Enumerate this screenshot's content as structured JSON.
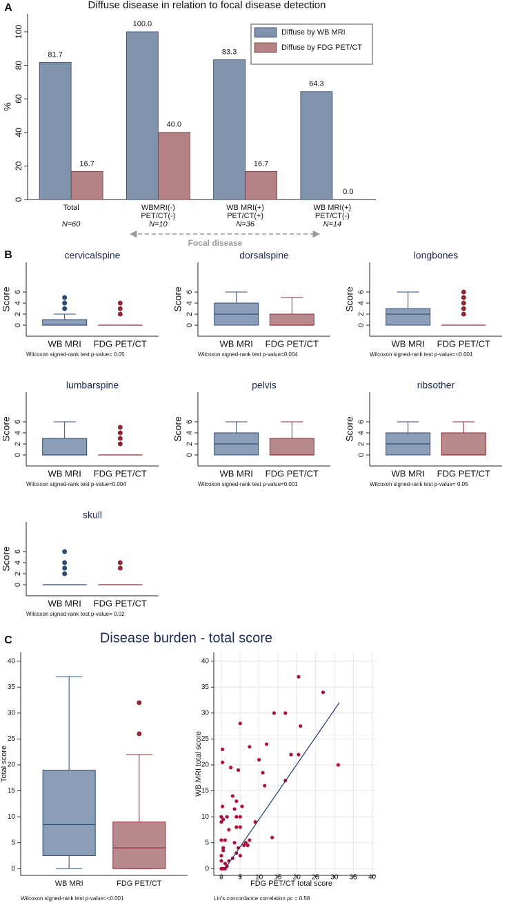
{
  "chart_data": [
    {
      "type": "bar",
      "panel": "A",
      "title": "Diffuse disease in relation to focal disease detection",
      "ylabel": "%",
      "categories": [
        [
          "Total"
        ],
        [
          "WBMRI(-)",
          "PET/CT(-)"
        ],
        [
          "WB MRI(+)",
          "PET/CT(+)"
        ],
        [
          "WB MRI(+)",
          "PET/CT(-)"
        ]
      ],
      "n_labels": [
        "N=60",
        "N=10",
        "N=36",
        "N=14"
      ],
      "series": [
        {
          "name": "Diffuse by WB MRI",
          "color": "#7f93ad",
          "edge_color": "#33465e",
          "values": [
            81.7,
            100,
            83.3,
            64.3
          ],
          "value_labels": [
            "81.7",
            "100.0",
            "83.3",
            "64.3"
          ]
        },
        {
          "name": "Diffuse by FDG PET/CT",
          "color": "#b48185",
          "edge_color": "#6e3b40",
          "values": [
            16.7,
            40,
            16.7,
            0
          ],
          "value_labels": [
            "16.7",
            "40.0",
            "16.7",
            "0.0"
          ]
        }
      ],
      "annotation": "Focal disease",
      "ylim": [
        0,
        100
      ],
      "yticks": [
        0,
        20,
        40,
        60,
        80,
        100
      ],
      "grid": false,
      "legend": "upper right"
    },
    {
      "type": "box",
      "panel": "B",
      "title": "cervicalspine",
      "ylabel": "Score",
      "note": "Wilcoxon signed-rank test p-value= 0.05",
      "ylim": [
        -2,
        7
      ],
      "yticks": [
        0,
        2,
        4,
        6
      ],
      "grid": false,
      "series": [
        {
          "name": "WB MRI",
          "color": "#8b9eb7",
          "edge_color": "#2c4a72",
          "whisker_low": 0,
          "q1": 0,
          "median": 0,
          "q3": 1,
          "whisker_high": 2,
          "outliers": [
            3,
            4,
            5
          ]
        },
        {
          "name": "FDG PET/CT",
          "color": "#b8898d",
          "edge_color": "#8b2a35",
          "whisker_low": 0,
          "q1": 0,
          "median": 0,
          "q3": 0,
          "whisker_high": 0,
          "outliers": [
            2,
            3,
            4
          ]
        }
      ]
    },
    {
      "type": "box",
      "title": "dorsalspine",
      "ylabel": "Score",
      "note": "Wilcoxon signed-rank test p-value=0.004",
      "ylim": [
        -2,
        7
      ],
      "yticks": [
        0,
        2,
        4,
        6
      ],
      "grid": false,
      "series": [
        {
          "name": "WB MRI",
          "color": "#8b9eb7",
          "edge_color": "#2c4a72",
          "whisker_low": 0,
          "q1": 0,
          "median": 2,
          "q3": 4,
          "whisker_high": 6,
          "outliers": []
        },
        {
          "name": "FDG PET/CT",
          "color": "#b8898d",
          "edge_color": "#8b2a35",
          "whisker_low": 0,
          "q1": 0,
          "median": 0,
          "q3": 2,
          "whisker_high": 5,
          "outliers": []
        }
      ]
    },
    {
      "type": "box",
      "title": "longbones",
      "ylabel": "Score",
      "note": "Wilcoxon signed-rank test p-value=<0.001",
      "ylim": [
        -2,
        7
      ],
      "yticks": [
        0,
        2,
        4,
        6
      ],
      "grid": false,
      "series": [
        {
          "name": "WB MRI",
          "color": "#8b9eb7",
          "edge_color": "#2c4a72",
          "whisker_low": 0,
          "q1": 0,
          "median": 2,
          "q3": 3,
          "whisker_high": 6,
          "outliers": []
        },
        {
          "name": "FDG PET/CT",
          "color": "#b8898d",
          "edge_color": "#8b2a35",
          "whisker_low": 0,
          "q1": 0,
          "median": 0,
          "q3": 0,
          "whisker_high": 0,
          "outliers": [
            2,
            3,
            4,
            5,
            6
          ]
        }
      ]
    },
    {
      "type": "box",
      "title": "lumbarspine",
      "ylabel": "Score",
      "note": "Wilcoxon signed-rank test p-value=0.004",
      "ylim": [
        -2,
        7
      ],
      "yticks": [
        0,
        2,
        4,
        6
      ],
      "grid": false,
      "series": [
        {
          "name": "WB MRI",
          "color": "#8b9eb7",
          "edge_color": "#2c4a72",
          "whisker_low": 0,
          "q1": 0,
          "median": 0,
          "q3": 3,
          "whisker_high": 6,
          "outliers": []
        },
        {
          "name": "FDG PET/CT",
          "color": "#b8898d",
          "edge_color": "#8b2a35",
          "whisker_low": 0,
          "q1": 0,
          "median": 0,
          "q3": 0,
          "whisker_high": 0,
          "outliers": [
            2,
            3,
            4,
            5
          ]
        }
      ]
    },
    {
      "type": "box",
      "title": "pelvis",
      "ylabel": "Score",
      "note": "Wilcoxon signed-rank test p-value=0.001",
      "ylim": [
        -2,
        7
      ],
      "yticks": [
        0,
        2,
        4,
        6
      ],
      "grid": false,
      "series": [
        {
          "name": "WB MRI",
          "color": "#8b9eb7",
          "edge_color": "#2c4a72",
          "whisker_low": 0,
          "q1": 0,
          "median": 2,
          "q3": 4,
          "whisker_high": 6,
          "outliers": []
        },
        {
          "name": "FDG PET/CT",
          "color": "#b8898d",
          "edge_color": "#8b2a35",
          "whisker_low": 0,
          "q1": 0,
          "median": 0,
          "q3": 3,
          "whisker_high": 6,
          "outliers": []
        }
      ]
    },
    {
      "type": "box",
      "title": "ribsother",
      "ylabel": "Score",
      "note": "Wilcoxon signed-rank test p-value= 0.05",
      "ylim": [
        -2,
        7
      ],
      "yticks": [
        0,
        2,
        4,
        6
      ],
      "grid": false,
      "series": [
        {
          "name": "WB MRI",
          "color": "#8b9eb7",
          "edge_color": "#2c4a72",
          "whisker_low": 0,
          "q1": 0,
          "median": 2,
          "q3": 4,
          "whisker_high": 6,
          "outliers": []
        },
        {
          "name": "FDG PET/CT",
          "color": "#b8898d",
          "edge_color": "#8b2a35",
          "whisker_low": 0,
          "q1": 0,
          "median": 0,
          "q3": 4,
          "whisker_high": 6,
          "outliers": []
        }
      ]
    },
    {
      "type": "box",
      "title": "skull",
      "ylabel": "Score",
      "note": "Wilcoxon signed-rank test p-value= 0.02",
      "ylim": [
        -2,
        7
      ],
      "yticks": [
        0,
        2,
        4,
        6
      ],
      "grid": false,
      "series": [
        {
          "name": "WB MRI",
          "color": "#8b9eb7",
          "edge_color": "#2c4a72",
          "whisker_low": 0,
          "q1": 0,
          "median": 0,
          "q3": 0,
          "whisker_high": 0,
          "outliers": [
            2,
            3,
            4,
            6
          ]
        },
        {
          "name": "FDG PET/CT",
          "color": "#b8898d",
          "edge_color": "#8b2a35",
          "whisker_low": 0,
          "q1": 0,
          "median": 0,
          "q3": 0,
          "whisker_high": 0,
          "outliers": [
            3,
            4
          ]
        }
      ]
    },
    {
      "type": "box",
      "panel": "C",
      "title": "Disease burden - total score",
      "ylabel": "Total score",
      "note": "Wilcoxon signed-rank test p-value=<0.001",
      "ylim": [
        -1.3,
        41.7
      ],
      "yticks": [
        0,
        5,
        10,
        15,
        20,
        25,
        30,
        35,
        40
      ],
      "grid": false,
      "series": [
        {
          "name": "WB MRI",
          "color": "#8b9eb7",
          "edge_color": "#2c4a72",
          "whisker_low": 0,
          "q1": 2.5,
          "median": 8.5,
          "q3": 19,
          "whisker_high": 37,
          "outliers": []
        },
        {
          "name": "FDG PET/CT",
          "color": "#b8898d",
          "edge_color": "#8b2a35",
          "whisker_low": 0,
          "q1": 0,
          "median": 4,
          "q3": 9,
          "whisker_high": 22,
          "outliers": [
            26,
            32
          ]
        }
      ]
    },
    {
      "type": "scatter",
      "xlabel": "FDG PET/CT total score",
      "ylabel": "WB MRI total score",
      "note": "Lin's concordance correlation ρc =  0.58",
      "xlim": [
        -2,
        41
      ],
      "xticks": [
        0,
        5,
        10,
        15,
        20,
        25,
        30,
        35,
        40
      ],
      "ylim": [
        -1.3,
        41.7
      ],
      "yticks": [
        0,
        5,
        10,
        15,
        20,
        25,
        30,
        35,
        40
      ],
      "grid": true,
      "color": "#b0103a",
      "x": [
        20.5,
        27,
        31,
        14,
        17,
        21,
        18.5,
        20.5,
        5,
        12,
        7.5,
        0.3,
        0.3,
        2.5,
        4.5,
        10,
        11,
        11.5,
        17,
        0.3,
        3,
        4,
        5.5,
        3.5,
        1.5,
        0,
        0,
        9,
        4,
        5,
        5,
        4,
        1,
        0,
        0.5,
        0,
        1,
        0.5,
        0,
        1,
        2,
        3,
        4,
        4.5,
        6,
        7,
        7.5,
        13.5,
        0.5,
        0,
        1.5,
        2,
        5,
        0.5,
        3.5,
        6.5
      ],
      "values": [
        37,
        34,
        20,
        30,
        30,
        27.5,
        22,
        22,
        28,
        24,
        23.5,
        23,
        20.5,
        19.5,
        19,
        21,
        18.5,
        16,
        17,
        12,
        14,
        13,
        12,
        11.5,
        10,
        10,
        9,
        9,
        10,
        10,
        8,
        8,
        5.5,
        5.5,
        3.5,
        2.5,
        1,
        0,
        0,
        0,
        1.5,
        2,
        3,
        4,
        4.5,
        4.5,
        5.5,
        6,
        4,
        1.5,
        0.5,
        7.5,
        2.5,
        9.5,
        5,
        5
      ],
      "fit_line": {
        "color": "#1f3a6e",
        "x": [
          1,
          31.3
        ],
        "values": [
          0,
          32
        ]
      }
    }
  ]
}
